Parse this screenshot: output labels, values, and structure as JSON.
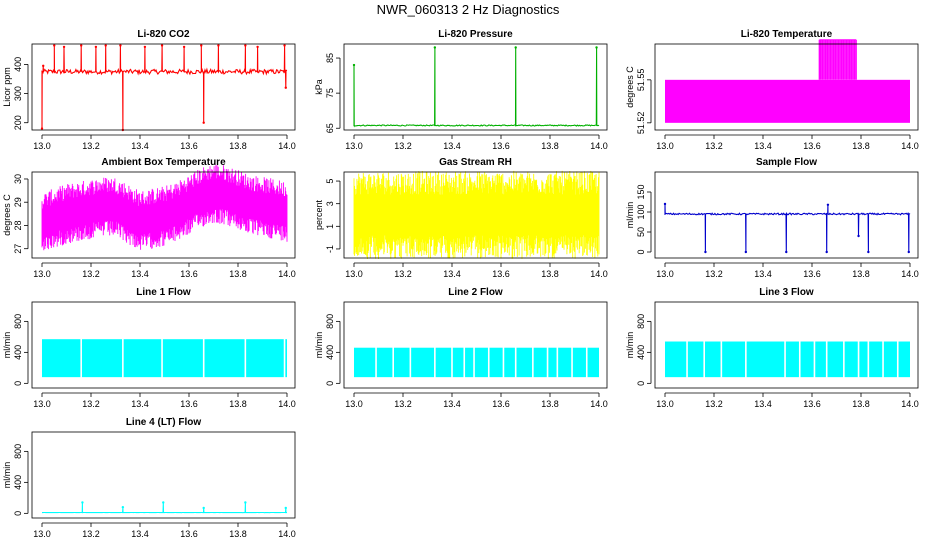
{
  "page_title": "NWR_060313 2 Hz Diagnostics",
  "chart_data": [
    {
      "id": "co2",
      "type": "line",
      "title": "Li-820 CO2",
      "ylabel": "Licor ppm",
      "color": "#ff0000",
      "style": "line",
      "xlim": [
        13.0,
        14.0
      ],
      "ylim": [
        175,
        470
      ],
      "xticks": [
        13.0,
        13.2,
        13.4,
        13.6,
        13.8,
        14.0
      ],
      "yticks": [
        200,
        300,
        400
      ],
      "base": 375,
      "noise": 8,
      "events": [
        {
          "x": 13.0,
          "y": 180
        },
        {
          "x": 13.005,
          "y": 395
        },
        {
          "x": 13.05,
          "y": 465
        },
        {
          "x": 13.09,
          "y": 460
        },
        {
          "x": 13.16,
          "y": 465
        },
        {
          "x": 13.22,
          "y": 460
        },
        {
          "x": 13.26,
          "y": 465
        },
        {
          "x": 13.32,
          "y": 465
        },
        {
          "x": 13.33,
          "y": 175
        },
        {
          "x": 13.42,
          "y": 460
        },
        {
          "x": 13.49,
          "y": 465
        },
        {
          "x": 13.58,
          "y": 460
        },
        {
          "x": 13.65,
          "y": 465
        },
        {
          "x": 13.66,
          "y": 200
        },
        {
          "x": 13.72,
          "y": 465
        },
        {
          "x": 13.83,
          "y": 465
        },
        {
          "x": 13.88,
          "y": 460
        },
        {
          "x": 13.99,
          "y": 465
        },
        {
          "x": 13.995,
          "y": 320
        }
      ]
    },
    {
      "id": "pressure",
      "type": "line",
      "title": "Li-820 Pressure",
      "ylabel": "kPa",
      "color": "#00b000",
      "style": "line",
      "xlim": [
        13.0,
        14.0
      ],
      "ylim": [
        64.5,
        89
      ],
      "xticks": [
        13.0,
        13.2,
        13.4,
        13.6,
        13.8,
        14.0
      ],
      "yticks": [
        65,
        75,
        85
      ],
      "base": 65.8,
      "noise": 0.15,
      "events": [
        {
          "x": 13.0,
          "y": 83
        },
        {
          "x": 13.33,
          "y": 88
        },
        {
          "x": 13.66,
          "y": 88
        },
        {
          "x": 13.99,
          "y": 88
        }
      ]
    },
    {
      "id": "temperature",
      "type": "area",
      "title": "Li-820 Temperature",
      "ylabel": "degrees C",
      "color": "#ff00ff",
      "style": "block",
      "xlim": [
        13.0,
        14.0
      ],
      "ylim": [
        51.515,
        51.575
      ],
      "xticks": [
        13.0,
        13.2,
        13.4,
        13.6,
        13.8,
        14.0
      ],
      "yticks": [
        51.52,
        51.55
      ],
      "yticklabels": [
        "51.52",
        "51.55"
      ],
      "block_low": 51.52,
      "block_high": 51.55,
      "burst_range": [
        13.63,
        13.78
      ],
      "burst_top": 51.578
    },
    {
      "id": "ambient",
      "type": "line",
      "title": "Ambient Box Temperature",
      "ylabel": "degrees C",
      "color": "#ff00ff",
      "style": "band",
      "xlim": [
        13.0,
        14.0
      ],
      "ylim": [
        26.6,
        30.3
      ],
      "xticks": [
        13.0,
        13.2,
        13.4,
        13.6,
        13.8,
        14.0
      ],
      "yticks": [
        27,
        28,
        29,
        30
      ],
      "band_center": [
        28.1,
        28.3,
        28.5,
        28.6,
        28.7,
        28.8,
        28.8,
        28.5,
        28.2,
        28.3,
        28.4,
        28.6,
        28.9,
        29.2,
        29.4,
        29.3,
        29.1,
        28.9,
        28.8,
        28.7,
        28.6
      ],
      "band_half": 1.0
    },
    {
      "id": "rh",
      "type": "line",
      "title": "Gas Stream RH",
      "ylabel": "percent",
      "color": "#ffff00",
      "style": "band",
      "xlim": [
        13.0,
        14.0
      ],
      "ylim": [
        -1.8,
        5.8
      ],
      "xticks": [
        13.0,
        13.2,
        13.4,
        13.6,
        13.8,
        14.0
      ],
      "yticks": [
        -1,
        1,
        3,
        5
      ],
      "band_center": [
        2,
        2,
        2,
        2,
        2,
        2,
        2,
        2,
        2,
        2,
        2,
        2,
        2,
        2,
        2,
        2,
        2,
        2,
        2,
        2,
        2
      ],
      "band_half": 3.0
    },
    {
      "id": "sample",
      "type": "line",
      "title": "Sample Flow",
      "ylabel": "ml/min",
      "color": "#0000cc",
      "style": "line",
      "xlim": [
        13.0,
        14.0
      ],
      "ylim": [
        -15,
        200
      ],
      "xticks": [
        13.0,
        13.2,
        13.4,
        13.6,
        13.8,
        14.0
      ],
      "yticks": [
        0,
        50,
        100,
        150
      ],
      "base": 95,
      "noise": 2,
      "events": [
        {
          "x": 13.0,
          "y": 120
        },
        {
          "x": 13.165,
          "y": 0
        },
        {
          "x": 13.33,
          "y": 0
        },
        {
          "x": 13.495,
          "y": 0
        },
        {
          "x": 13.66,
          "y": 0
        },
        {
          "x": 13.665,
          "y": 118
        },
        {
          "x": 13.79,
          "y": 40
        },
        {
          "x": 13.83,
          "y": 0
        },
        {
          "x": 13.995,
          "y": 0
        }
      ]
    },
    {
      "id": "line1",
      "type": "area",
      "title": "Line 1 Flow",
      "ylabel": "ml/min",
      "color": "#00ffff",
      "style": "flowblock",
      "xlim": [
        13.0,
        14.0
      ],
      "ylim": [
        -60,
        1050
      ],
      "xticks": [
        13.0,
        13.2,
        13.4,
        13.6,
        13.8,
        14.0
      ],
      "yticks": [
        0,
        400,
        800
      ],
      "low": 80,
      "high": 570,
      "gaps": [
        13.16,
        13.33,
        13.49,
        13.66,
        13.83,
        13.99
      ]
    },
    {
      "id": "line2",
      "type": "area",
      "title": "Line 2 Flow",
      "ylabel": "ml/min",
      "color": "#00ffff",
      "style": "flowblock",
      "xlim": [
        13.0,
        14.0
      ],
      "ylim": [
        -60,
        1050
      ],
      "xticks": [
        13.0,
        13.2,
        13.4,
        13.6,
        13.8,
        14.0
      ],
      "yticks": [
        0,
        400,
        800
      ],
      "low": 80,
      "high": 460,
      "gaps": [
        13.09,
        13.16,
        13.23,
        13.33,
        13.4,
        13.45,
        13.49,
        13.55,
        13.61,
        13.66,
        13.73,
        13.79,
        13.83,
        13.89,
        13.95
      ]
    },
    {
      "id": "line3",
      "type": "area",
      "title": "Line 3 Flow",
      "ylabel": "ml/min",
      "color": "#00ffff",
      "style": "flowblock",
      "xlim": [
        13.0,
        14.0
      ],
      "ylim": [
        -60,
        1050
      ],
      "xticks": [
        13.0,
        13.2,
        13.4,
        13.6,
        13.8,
        14.0
      ],
      "yticks": [
        0,
        400,
        800
      ],
      "low": 80,
      "high": 540,
      "gaps": [
        13.09,
        13.16,
        13.23,
        13.33,
        13.49,
        13.55,
        13.61,
        13.66,
        13.73,
        13.79,
        13.83,
        13.89,
        13.95
      ]
    },
    {
      "id": "line4",
      "type": "line",
      "title": "Line 4 (LT) Flow",
      "ylabel": "ml/min",
      "color": "#00ffff",
      "style": "line",
      "xlim": [
        13.0,
        14.0
      ],
      "ylim": [
        -60,
        1050
      ],
      "xticks": [
        13.0,
        13.2,
        13.4,
        13.6,
        13.8,
        14.0
      ],
      "yticks": [
        0,
        400,
        800
      ],
      "base": 10,
      "noise": 1,
      "events": [
        {
          "x": 13.165,
          "y": 140
        },
        {
          "x": 13.33,
          "y": 80
        },
        {
          "x": 13.495,
          "y": 140
        },
        {
          "x": 13.66,
          "y": 70
        },
        {
          "x": 13.83,
          "y": 140
        },
        {
          "x": 13.995,
          "y": 70
        }
      ]
    }
  ]
}
